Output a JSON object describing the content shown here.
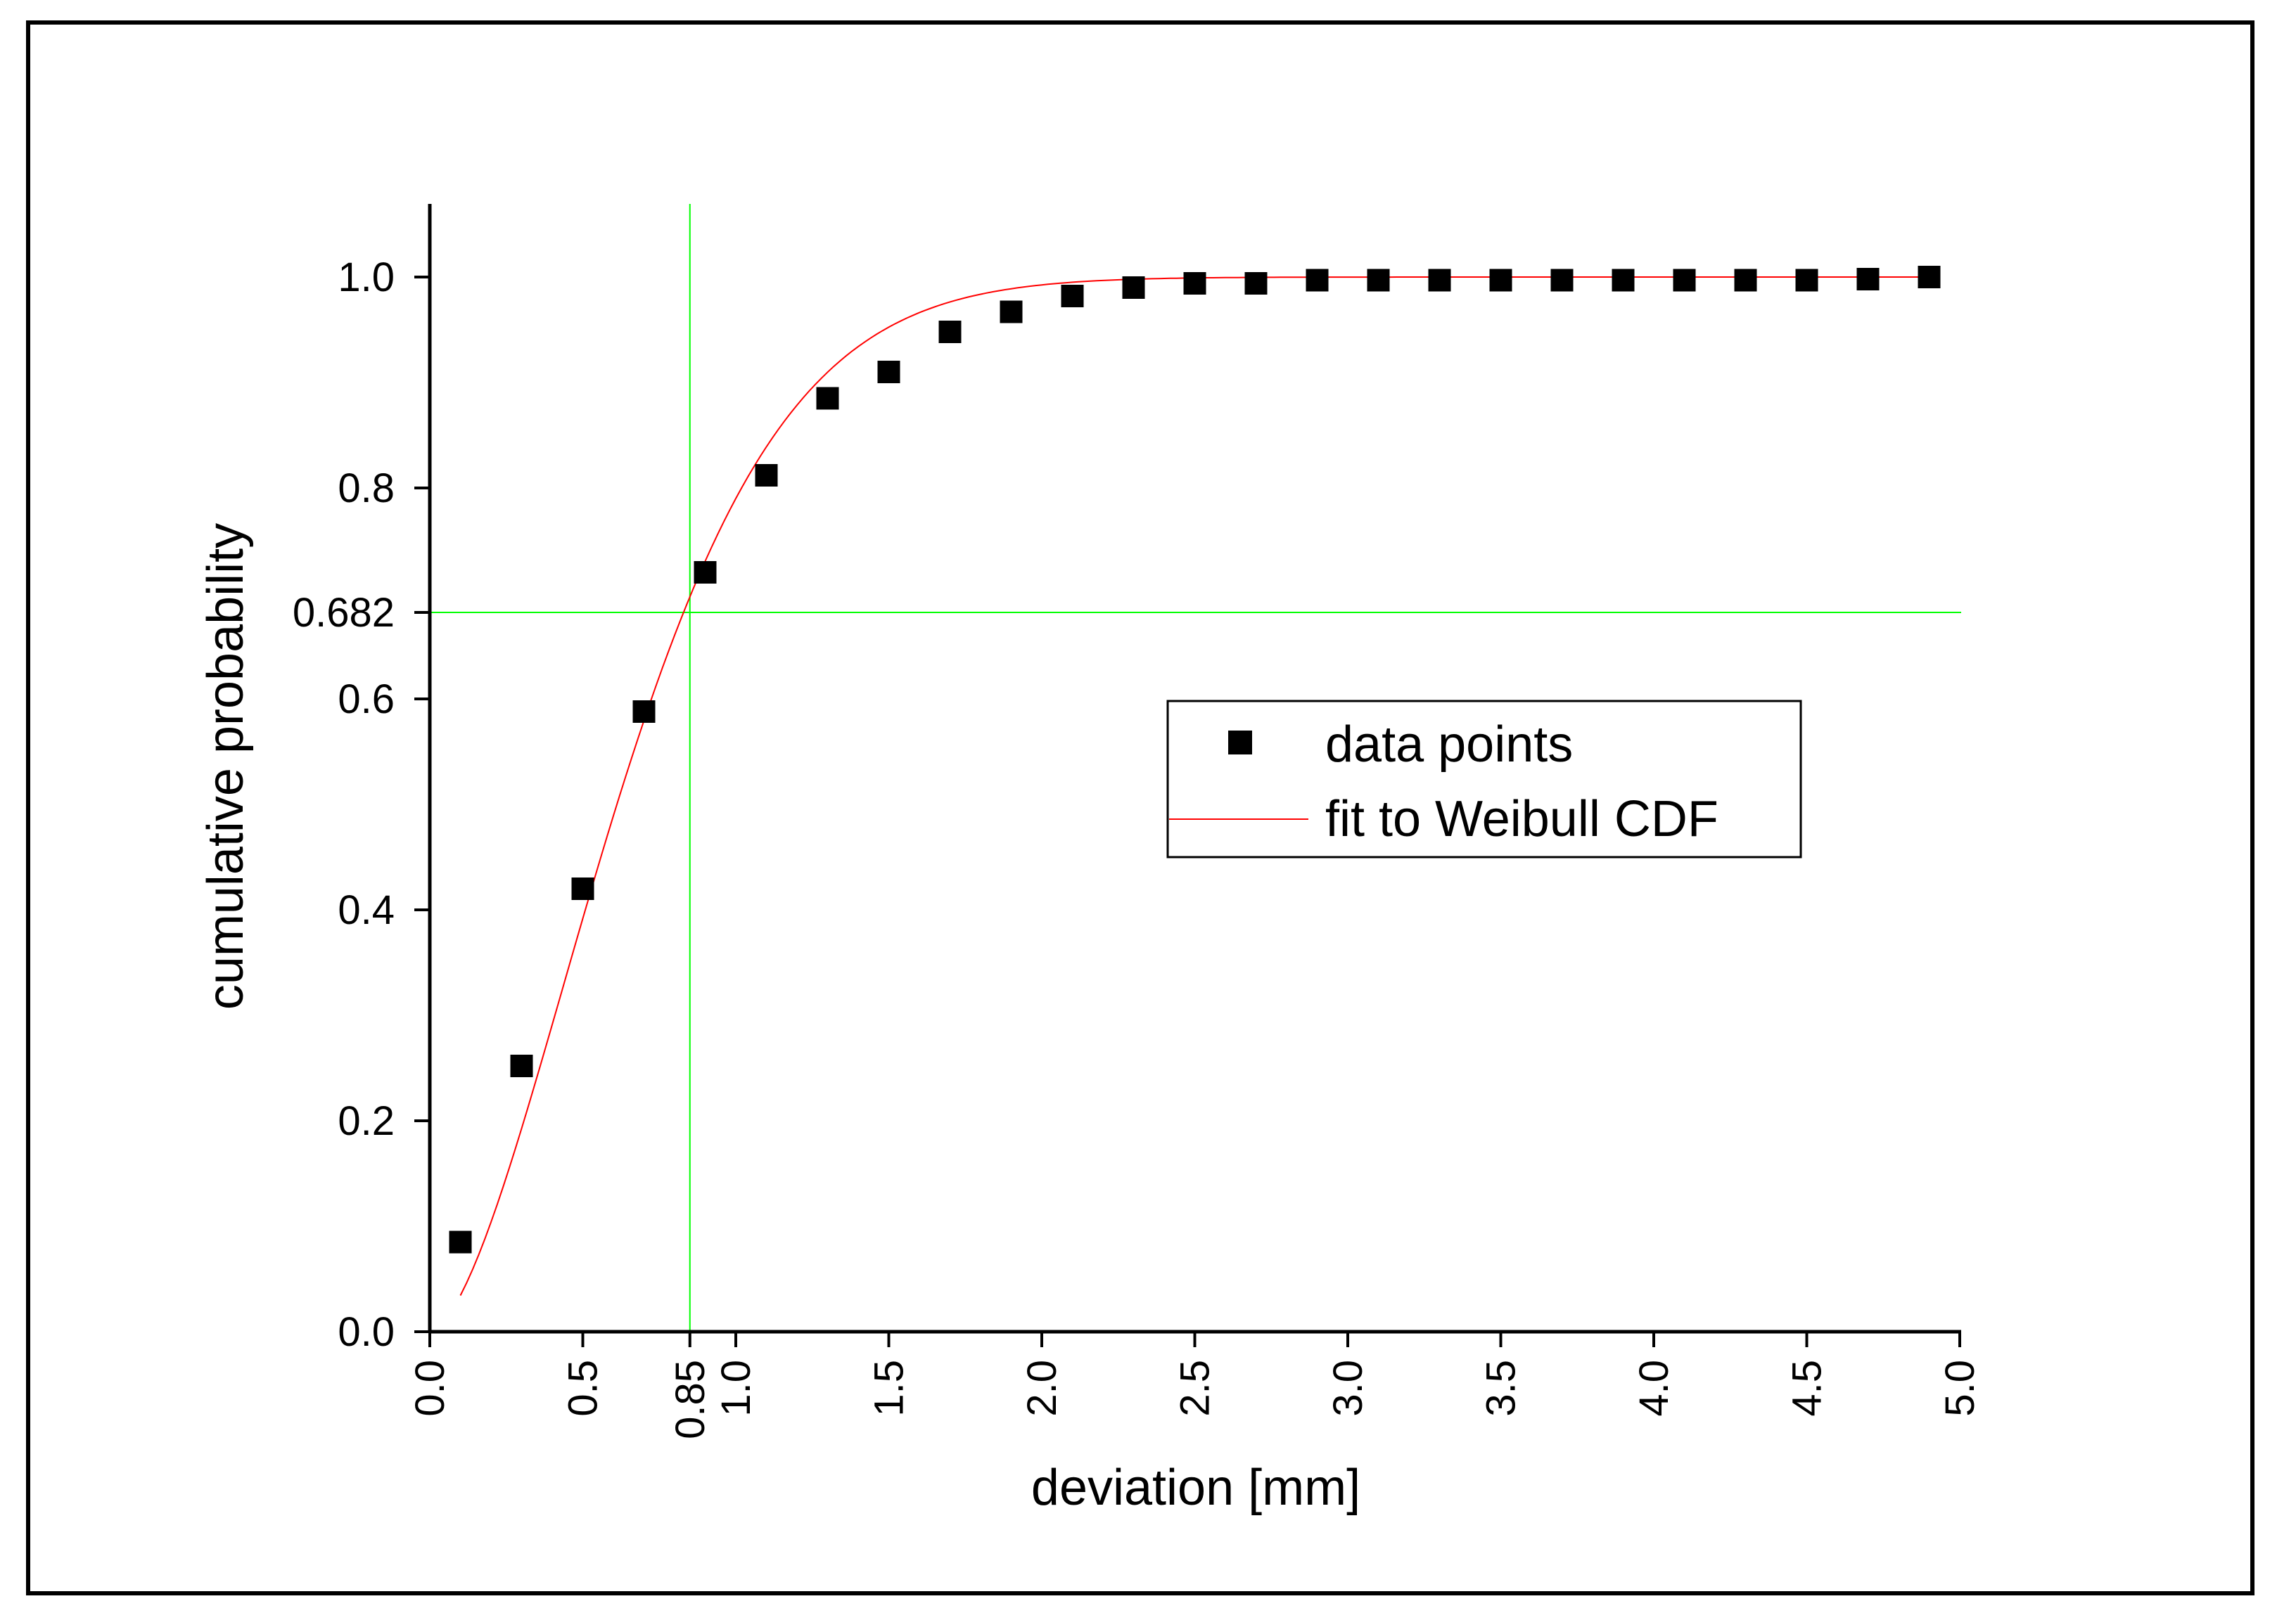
{
  "chart_data": {
    "type": "scatter",
    "title": "",
    "xlabel": "deviation [mm]",
    "ylabel": "cumulative probability",
    "xlim": [
      0.0,
      5.0
    ],
    "ylim": [
      0.0,
      1.07
    ],
    "x_ticks": [
      {
        "value": 0.0,
        "label": "0.0"
      },
      {
        "value": 0.5,
        "label": "0.5"
      },
      {
        "value": 0.85,
        "label": "0.85"
      },
      {
        "value": 1.0,
        "label": "1.0"
      },
      {
        "value": 1.5,
        "label": "1.5"
      },
      {
        "value": 2.0,
        "label": "2.0"
      },
      {
        "value": 2.5,
        "label": "2.5"
      },
      {
        "value": 3.0,
        "label": "3.0"
      },
      {
        "value": 3.5,
        "label": "3.5"
      },
      {
        "value": 4.0,
        "label": "4.0"
      },
      {
        "value": 4.5,
        "label": "4.5"
      },
      {
        "value": 5.0,
        "label": "5.0"
      }
    ],
    "y_ticks": [
      {
        "value": 0.0,
        "label": "0.0"
      },
      {
        "value": 0.2,
        "label": "0.2"
      },
      {
        "value": 0.4,
        "label": "0.4"
      },
      {
        "value": 0.6,
        "label": "0.6"
      },
      {
        "value": 0.682,
        "label": "0.682"
      },
      {
        "value": 0.8,
        "label": "0.8"
      },
      {
        "value": 1.0,
        "label": "1.0"
      }
    ],
    "series": [
      {
        "name": "data points",
        "type": "scatter",
        "marker": "square",
        "color": "#000000",
        "x": [
          0.1,
          0.3,
          0.5,
          0.7,
          0.9,
          1.1,
          1.3,
          1.5,
          1.7,
          1.9,
          2.1,
          2.3,
          2.5,
          2.7,
          2.9,
          3.1,
          3.3,
          3.5,
          3.7,
          3.9,
          4.1,
          4.3,
          4.5,
          4.7,
          4.9
        ],
        "y": [
          0.085,
          0.252,
          0.42,
          0.588,
          0.72,
          0.812,
          0.885,
          0.91,
          0.948,
          0.967,
          0.982,
          0.99,
          0.994,
          0.994,
          0.997,
          0.997,
          0.997,
          0.997,
          0.997,
          0.997,
          0.997,
          0.997,
          0.997,
          0.998,
          1.0
        ]
      },
      {
        "name": "fit to Weibull CDF",
        "type": "line",
        "color": "#ff0000",
        "model": {
          "scale": 0.7636,
          "shape": 1.65
        },
        "x_range": [
          0.1,
          4.9
        ]
      }
    ],
    "reference_lines": [
      {
        "orientation": "vertical",
        "value": 0.85,
        "color": "#00ff00"
      },
      {
        "orientation": "horizontal",
        "value": 0.682,
        "color": "#00ff00"
      }
    ],
    "legend_position": "center-right",
    "grid": false
  }
}
